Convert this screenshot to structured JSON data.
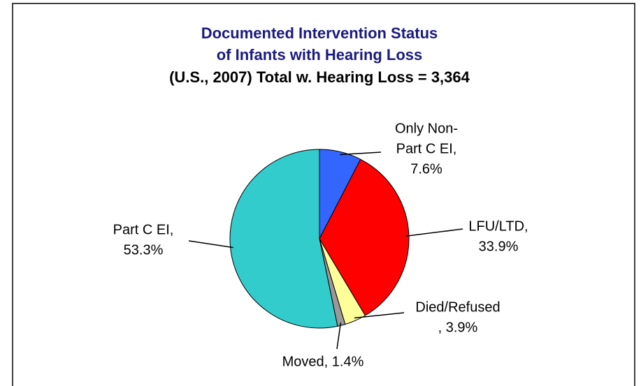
{
  "chart_data": {
    "type": "pie",
    "title": [
      "Documented Intervention Status",
      "of Infants with Hearing Loss"
    ],
    "subtitle": "(U.S., 2007) Total w. Hearing Loss = 3,364",
    "values": [
      7.6,
      33.9,
      3.9,
      1.4,
      53.3
    ],
    "value_labels": [
      [
        "Only Non-",
        "Part C EI,",
        "7.6%"
      ],
      [
        "LFU/LTD,",
        "33.9%"
      ],
      [
        "Died/Refused",
        ", 3.9%"
      ],
      [
        "Moved, 1.4%"
      ],
      [
        "Part C EI,",
        "53.3%"
      ]
    ],
    "colors": [
      "#3366ff",
      "#ff0000",
      "#ffff99",
      "#999999",
      "#33cccc"
    ]
  }
}
